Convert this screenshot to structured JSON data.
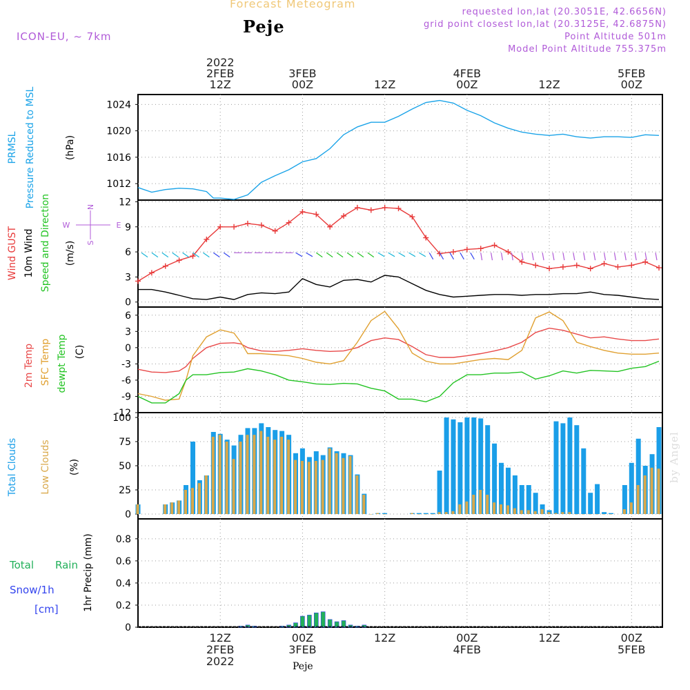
{
  "header": {
    "title": "Forecast Meteogram",
    "station": "Peje",
    "model": "ICON-EU, ~ 7km",
    "requested": "requested lon,lat (20.3051E, 42.6656N)",
    "grid": "grid point closest lon,lat (20.3125E, 42.6875N)",
    "point_alt": "Point Altitude 501m",
    "model_alt": "Model Point Altitude 755.375m",
    "footer": "Peje",
    "credit": "by Angel"
  },
  "colors": {
    "pressure": "#1aa3e8",
    "gust": "#e83a3a",
    "wind": "#000000",
    "t2m": "#e84848",
    "sfc": "#e0a030",
    "dewpt": "#22c322",
    "total_cloud": "#1a9ee8",
    "low_cloud": "#d9a84a",
    "rain": "#22b05a",
    "snow": "#3344ee",
    "model": "#b05ad8"
  },
  "time_axis": {
    "top_labels": [
      {
        "t": 12,
        "lines": [
          "2022",
          "2FEB",
          "12Z"
        ]
      },
      {
        "t": 24,
        "lines": [
          "3FEB",
          "00Z"
        ]
      },
      {
        "t": 36,
        "lines": [
          "12Z"
        ]
      },
      {
        "t": 48,
        "lines": [
          "4FEB",
          "00Z"
        ]
      },
      {
        "t": 60,
        "lines": [
          "12Z"
        ]
      },
      {
        "t": 72,
        "lines": [
          "5FEB",
          "00Z"
        ]
      }
    ],
    "bottom_labels": [
      {
        "t": 12,
        "lines": [
          "12Z",
          "2FEB",
          "2022"
        ]
      },
      {
        "t": 24,
        "lines": [
          "00Z",
          "3FEB"
        ]
      },
      {
        "t": 36,
        "lines": [
          "12Z"
        ]
      },
      {
        "t": 48,
        "lines": [
          "00Z",
          "4FEB"
        ]
      },
      {
        "t": 60,
        "lines": [
          "12Z"
        ]
      },
      {
        "t": 72,
        "lines": [
          "00Z",
          "5FEB"
        ]
      }
    ],
    "range_hours": [
      0,
      76.5
    ]
  },
  "panels": {
    "pressure": {
      "labels": [
        "PRMSL",
        "Pressure Reduced to MSL",
        "(hPa)"
      ],
      "yticks": [
        "1012",
        "1016",
        "1020",
        "1024"
      ],
      "ylim": [
        1009.5,
        1025.5
      ]
    },
    "wind": {
      "labels": [
        "Wind GUST",
        "10m Wind",
        "Speed and Direction",
        "(m/s)"
      ],
      "yticks": [
        "0",
        "3",
        "6",
        "9",
        "12"
      ],
      "ylim": [
        -0.6,
        12.2
      ],
      "compass": {
        "n": "N",
        "s": "S",
        "w": "W",
        "e": "E"
      }
    },
    "temp": {
      "labels": [
        "2m Temp",
        "SFC Temp",
        "dewpt Temp",
        "(C)"
      ],
      "yticks": [
        "-12",
        "-9",
        "-6",
        "-3",
        "0",
        "3",
        "6"
      ],
      "ylim": [
        -12,
        7.5
      ]
    },
    "clouds": {
      "labels": [
        "Total Clouds",
        "Low Clouds",
        "(%)"
      ],
      "yticks": [
        "0",
        "25",
        "50",
        "75",
        "100"
      ],
      "ylim": [
        -5,
        105
      ]
    },
    "precip": {
      "labels": [
        "Total",
        "Rain",
        "Snow/1h",
        "[cm]",
        "1hr Precip (mm)"
      ],
      "yticks": [
        "0",
        "0.2",
        "0.4",
        "0.6",
        "0.8"
      ],
      "ylim": [
        0,
        0.98
      ]
    }
  },
  "chart_data": [
    {
      "type": "line",
      "title": "PRMSL Pressure Reduced to MSL",
      "ylabel": "(hPa)",
      "ylim": [
        1009.5,
        1025.5
      ],
      "x": [
        0,
        2,
        4,
        6,
        8,
        10,
        11,
        12,
        14,
        16,
        18,
        20,
        22,
        24,
        26,
        28,
        30,
        32,
        34,
        36,
        38,
        40,
        42,
        44,
        46,
        48,
        50,
        52,
        54,
        56,
        58,
        60,
        62,
        64,
        66,
        68,
        70,
        72,
        74,
        76
      ],
      "series": [
        {
          "name": "PRMSL",
          "values": [
            1011.4,
            1010.7,
            1011.1,
            1011.3,
            1011.2,
            1010.8,
            1009.8,
            1009.8,
            1009.6,
            1010.3,
            1012.2,
            1013.2,
            1014.1,
            1015.3,
            1015.8,
            1017.3,
            1019.4,
            1020.6,
            1021.3,
            1021.3,
            1022.2,
            1023.3,
            1024.3,
            1024.6,
            1024.2,
            1023.1,
            1022.3,
            1021.2,
            1020.4,
            1019.8,
            1019.5,
            1019.3,
            1019.5,
            1019.1,
            1018.9,
            1019.1,
            1019.1,
            1019.0,
            1019.4,
            1019.3
          ]
        }
      ]
    },
    {
      "type": "line",
      "title": "Wind GUST / 10m Wind Speed and Direction",
      "ylabel": "(m/s)",
      "ylim": [
        0,
        12
      ],
      "x": [
        0,
        2,
        4,
        6,
        8,
        10,
        12,
        14,
        16,
        18,
        20,
        22,
        24,
        26,
        28,
        30,
        32,
        34,
        36,
        38,
        40,
        42,
        44,
        46,
        48,
        50,
        52,
        54,
        56,
        58,
        60,
        62,
        64,
        66,
        68,
        70,
        72,
        74,
        76
      ],
      "series": [
        {
          "name": "Wind GUST",
          "values": [
            2.5,
            3.5,
            4.3,
            5.0,
            5.5,
            7.5,
            9.0,
            9.0,
            9.4,
            9.2,
            8.5,
            9.5,
            10.8,
            10.5,
            9.0,
            10.3,
            11.3,
            11.0,
            11.3,
            11.2,
            10.2,
            7.7,
            5.8,
            6.0,
            6.3,
            6.4,
            6.8,
            6.0,
            4.8,
            4.4,
            4.0,
            4.2,
            4.4,
            4.0,
            4.6,
            4.2,
            4.4,
            4.8,
            4.1
          ]
        },
        {
          "name": "10m Wind",
          "values": [
            1.5,
            1.5,
            1.2,
            0.8,
            0.4,
            0.3,
            0.6,
            0.3,
            0.9,
            1.1,
            1.0,
            1.2,
            2.8,
            2.1,
            1.8,
            2.6,
            2.7,
            2.4,
            3.2,
            3.0,
            2.2,
            1.4,
            0.9,
            0.6,
            0.7,
            0.8,
            0.9,
            0.9,
            0.8,
            0.9,
            0.9,
            1.0,
            1.0,
            1.2,
            0.9,
            0.8,
            0.6,
            0.4,
            0.3
          ]
        }
      ]
    },
    {
      "type": "line",
      "title": "2m Temp / SFC Temp / dewpt Temp",
      "ylabel": "(C)",
      "ylim": [
        -12,
        7.5
      ],
      "x": [
        0,
        2,
        4,
        6,
        7,
        8,
        10,
        12,
        14,
        15,
        16,
        18,
        20,
        22,
        24,
        26,
        28,
        30,
        32,
        34,
        36,
        38,
        40,
        42,
        44,
        46,
        48,
        50,
        52,
        54,
        56,
        58,
        60,
        62,
        64,
        66,
        68,
        70,
        72,
        74,
        76
      ],
      "series": [
        {
          "name": "2m Temp",
          "values": [
            -4.0,
            -4.5,
            -4.6,
            -4.3,
            -3.5,
            -2.0,
            0.0,
            0.8,
            0.9,
            0.7,
            0.0,
            -0.6,
            -0.7,
            -0.5,
            -0.2,
            -0.5,
            -0.7,
            -0.6,
            0.0,
            1.3,
            1.8,
            1.5,
            0.2,
            -1.3,
            -1.8,
            -1.8,
            -1.5,
            -1.1,
            -0.6,
            0.0,
            1.0,
            2.8,
            3.6,
            3.2,
            2.5,
            1.8,
            2.0,
            1.6,
            1.3,
            1.3,
            1.6
          ]
        },
        {
          "name": "SFC Temp",
          "values": [
            -8.5,
            -9.0,
            -9.7,
            -9.5,
            -6.0,
            -1.5,
            2.0,
            3.3,
            2.7,
            1.0,
            -1.1,
            -1.1,
            -1.3,
            -1.5,
            -2.0,
            -2.7,
            -3.0,
            -2.4,
            1.0,
            5.0,
            6.7,
            3.5,
            -1.0,
            -2.5,
            -3.0,
            -3.0,
            -2.6,
            -2.2,
            -2.0,
            -2.2,
            -0.5,
            5.5,
            6.6,
            5.0,
            1.0,
            0.2,
            -0.5,
            -1.0,
            -1.2,
            -1.2,
            -1.0
          ]
        },
        {
          "name": "dewpt Temp",
          "values": [
            -9.0,
            -10.2,
            -10.2,
            -8.5,
            -6.0,
            -5.0,
            -5.0,
            -4.6,
            -4.5,
            -4.2,
            -3.9,
            -4.3,
            -5.0,
            -6.0,
            -6.3,
            -6.7,
            -6.8,
            -6.6,
            -6.7,
            -7.5,
            -8.0,
            -9.5,
            -9.5,
            -10.0,
            -9.0,
            -6.5,
            -5.0,
            -5.0,
            -4.7,
            -4.7,
            -4.5,
            -5.8,
            -5.2,
            -4.3,
            -4.7,
            -4.2,
            -4.3,
            -4.4,
            -3.8,
            -3.5,
            -2.5
          ]
        }
      ]
    },
    {
      "type": "bar",
      "title": "Total Clouds / Low Clouds",
      "ylabel": "(%)",
      "ylim": [
        0,
        100
      ],
      "x": [
        0,
        4,
        5,
        6,
        7,
        8,
        9,
        10,
        11,
        12,
        13,
        14,
        15,
        16,
        17,
        18,
        19,
        20,
        21,
        22,
        23,
        24,
        25,
        26,
        27,
        28,
        29,
        30,
        31,
        32,
        33,
        34,
        35,
        36,
        40,
        41,
        42,
        43,
        44,
        45,
        46,
        47,
        48,
        49,
        50,
        51,
        52,
        53,
        54,
        55,
        56,
        57,
        58,
        59,
        60,
        61,
        62,
        63,
        64,
        65,
        66,
        67,
        68,
        69,
        71,
        72,
        73,
        74,
        75,
        76
      ],
      "series": [
        {
          "name": "Total Clouds",
          "values": [
            10,
            10,
            12,
            14,
            30,
            75,
            35,
            40,
            85,
            83,
            77,
            71,
            82,
            89,
            89,
            94,
            90,
            87,
            86,
            82,
            63,
            68,
            59,
            65,
            61,
            69,
            65,
            63,
            61,
            41,
            21,
            0,
            1,
            1,
            1,
            1,
            1,
            1,
            45,
            100,
            98,
            95,
            100,
            100,
            99,
            92,
            73,
            53,
            48,
            40,
            30,
            30,
            22,
            10,
            4,
            96,
            94,
            100,
            92,
            68,
            22,
            31,
            2,
            1,
            30,
            53,
            78,
            50,
            62,
            90
          ]
        },
        {
          "name": "Low Clouds",
          "values": [
            10,
            10,
            12,
            14,
            25,
            27,
            32,
            40,
            80,
            82,
            75,
            57,
            75,
            82,
            82,
            86,
            80,
            77,
            80,
            77,
            56,
            55,
            54,
            55,
            56,
            68,
            63,
            58,
            60,
            40,
            20,
            0,
            1,
            0,
            1,
            0,
            0,
            0,
            2,
            2,
            3,
            10,
            13,
            20,
            25,
            20,
            12,
            10,
            9,
            6,
            4,
            4,
            3,
            5,
            2,
            1,
            2,
            2,
            0,
            0,
            0,
            0,
            0,
            0,
            5,
            12,
            30,
            40,
            48,
            47
          ]
        }
      ]
    },
    {
      "type": "bar",
      "title": "1hr Precip",
      "ylabel": "1hr Precip (mm)",
      "ylim": [
        0,
        0.98
      ],
      "x": [
        15,
        16,
        17,
        21,
        22,
        23,
        24,
        25,
        26,
        27,
        28,
        29,
        30,
        31,
        32,
        33
      ],
      "series": [
        {
          "name": "Total Rain",
          "values": [
            0.01,
            0.02,
            0.01,
            0.01,
            0.02,
            0.04,
            0.1,
            0.11,
            0.13,
            0.14,
            0.07,
            0.05,
            0.06,
            0.02,
            0.01,
            0.02
          ]
        },
        {
          "name": "Snow/1h",
          "values": [
            0.0,
            0.0,
            0.0,
            0.0,
            0.0,
            0.0,
            0.0,
            0.0,
            0.0,
            0.0,
            0.0,
            0.0,
            0.0,
            0.0,
            0.0,
            0.0
          ]
        }
      ]
    }
  ]
}
